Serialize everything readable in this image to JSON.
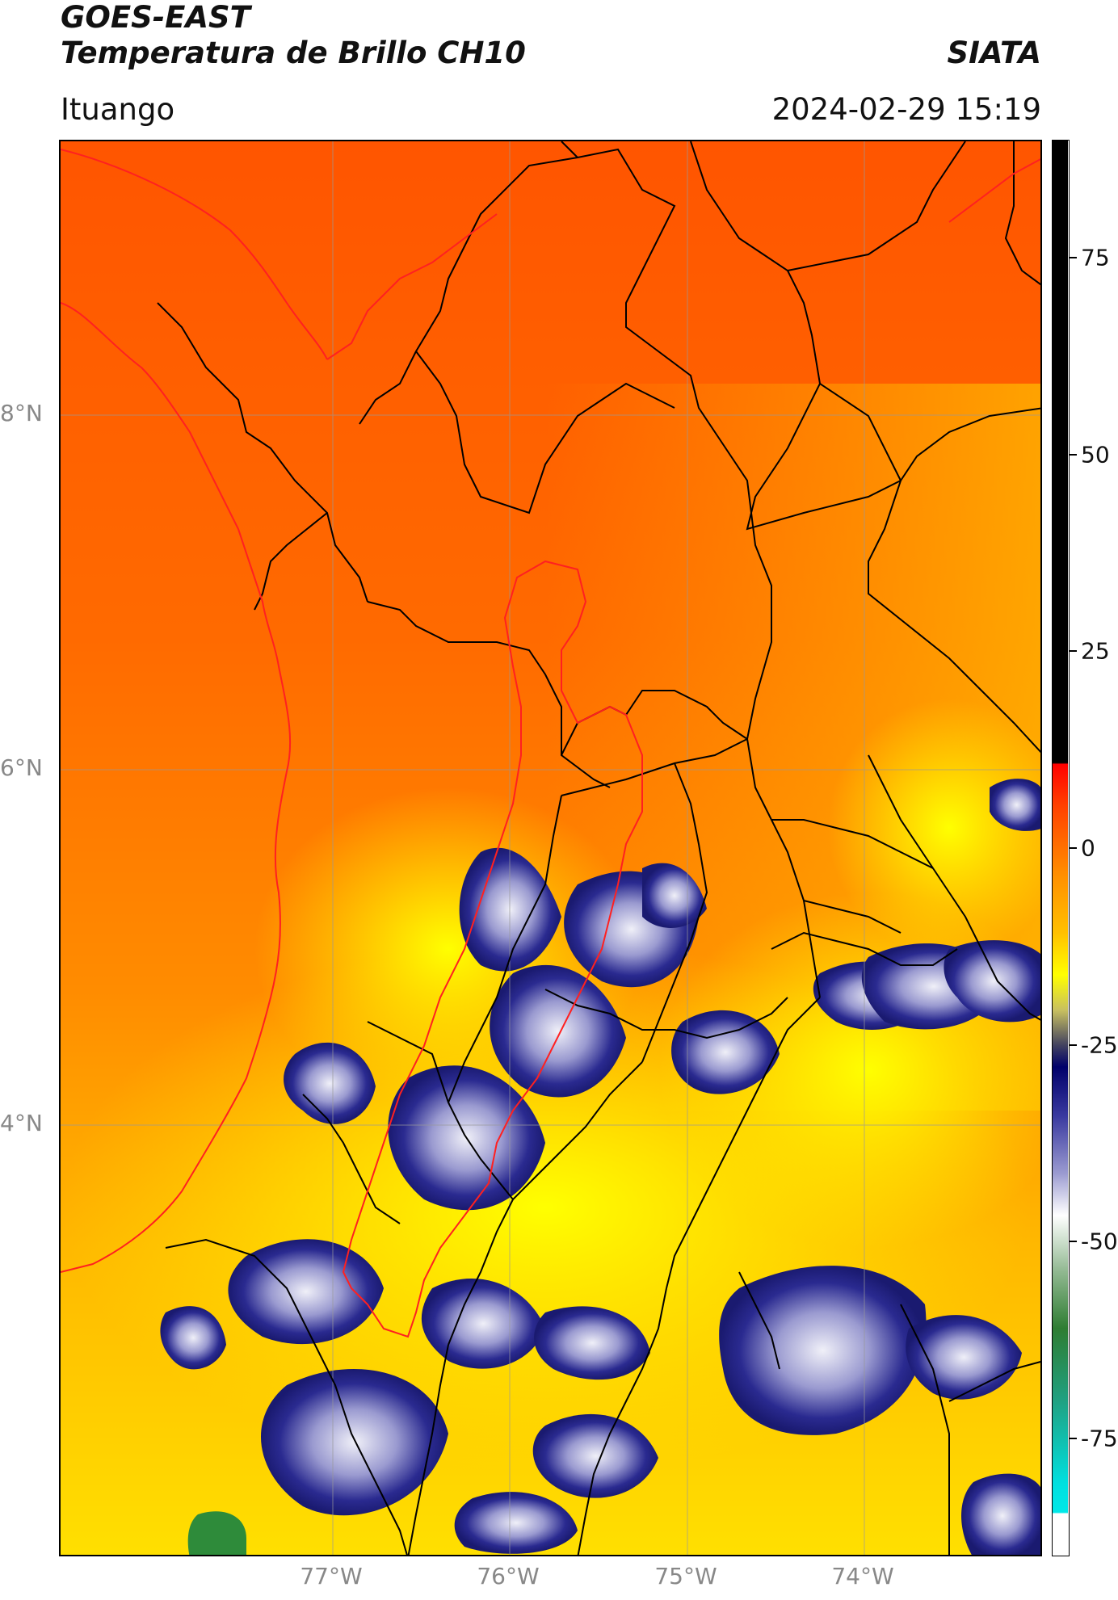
{
  "header": {
    "title_line1": "GOES-EAST",
    "title_line2": "Temperatura de Brillo CH10",
    "organization": "SIATA",
    "region": "Ituango",
    "timestamp": "2024-02-29 15:19"
  },
  "map": {
    "lat_labels": [
      "8°N",
      "6°N",
      "4°N"
    ],
    "lon_labels": [
      "77°W",
      "76°W",
      "75°W",
      "74°W"
    ],
    "lat_values": [
      8,
      6,
      4
    ],
    "lon_values": [
      -77,
      -76,
      -75,
      -74
    ],
    "colors": {
      "warm_far": "#ff5a00",
      "warm": "#ff7a00",
      "mid": "#ffb300",
      "cool": "#ffee00",
      "cloud_edge": "#1a1a80",
      "cloud_mid": "#6c6cb8",
      "cloud_core": "#e8e8f4",
      "basin_outline": "#ff2020",
      "borders": "#000000",
      "grid": "#999999"
    }
  },
  "colorbar": {
    "labels": [
      "75",
      "50",
      "25",
      "0",
      "-25",
      "-50",
      "-75"
    ],
    "values": [
      75,
      50,
      25,
      0,
      -25,
      -50,
      -75
    ],
    "min": -90,
    "max": 90
  }
}
